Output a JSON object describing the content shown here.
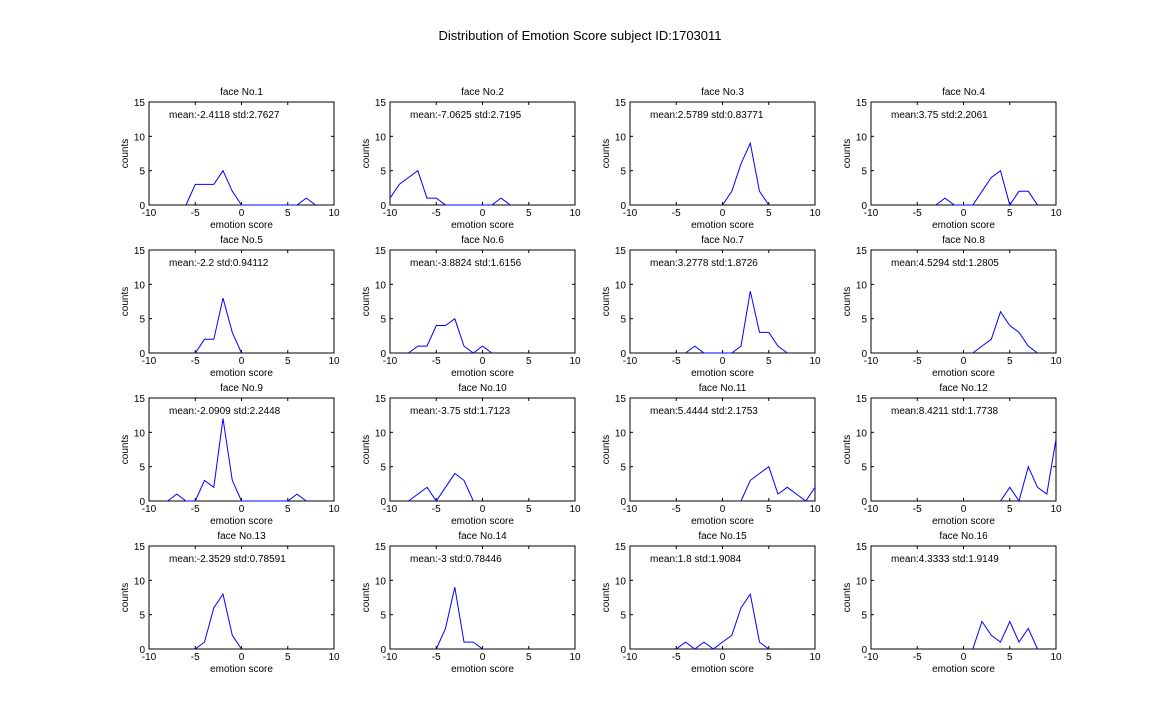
{
  "figure_title": "Distribution of Emotion Score  subject ID:1703011",
  "colors": {
    "series": "#0000ff",
    "axes": "#000000",
    "background": "#ffffff"
  },
  "chart_data": [
    {
      "type": "line",
      "title": "face No.1",
      "annotation": "mean:-2.4118 std:2.7627",
      "xlabel": "emotion score",
      "ylabel": "counts",
      "xlim": [
        -10,
        10
      ],
      "ylim": [
        0,
        15
      ],
      "xticks": [
        "-10",
        "-5",
        "0",
        "5",
        "10"
      ],
      "yticks": [
        "0",
        "5",
        "10",
        "15"
      ],
      "grid": false,
      "x": [
        -6,
        -5,
        -4,
        -3,
        -2,
        -1,
        0,
        1,
        2,
        3,
        4,
        5,
        6,
        7,
        8
      ],
      "y": [
        0,
        3,
        3,
        3,
        5,
        2,
        0,
        0,
        0,
        0,
        0,
        0,
        0,
        1,
        0
      ]
    },
    {
      "type": "line",
      "title": "face No.2",
      "annotation": "mean:-7.0625 std:2.7195",
      "xlabel": "emotion score",
      "ylabel": "counts",
      "xlim": [
        -10,
        10
      ],
      "ylim": [
        0,
        15
      ],
      "xticks": [
        "-10",
        "-5",
        "0",
        "5",
        "10"
      ],
      "yticks": [
        "0",
        "5",
        "10",
        "15"
      ],
      "grid": false,
      "x": [
        -10,
        -9,
        -8,
        -7,
        -6,
        -5,
        -4,
        -3,
        -2,
        -1,
        0,
        1,
        2,
        3
      ],
      "y": [
        1,
        3,
        4,
        5,
        1,
        1,
        0,
        0,
        0,
        0,
        0,
        0,
        1,
        0
      ]
    },
    {
      "type": "line",
      "title": "face No.3",
      "annotation": "mean:2.5789 std:0.83771",
      "xlabel": "emotion score",
      "ylabel": "counts",
      "xlim": [
        -10,
        10
      ],
      "ylim": [
        0,
        15
      ],
      "xticks": [
        "-10",
        "-5",
        "0",
        "5",
        "10"
      ],
      "yticks": [
        "0",
        "5",
        "10",
        "15"
      ],
      "grid": false,
      "x": [
        0,
        1,
        2,
        3,
        4,
        5
      ],
      "y": [
        0,
        2,
        6,
        9,
        2,
        0
      ]
    },
    {
      "type": "line",
      "title": "face No.4",
      "annotation": "mean:3.75 std:2.2061",
      "xlabel": "emotion score",
      "ylabel": "counts",
      "xlim": [
        -10,
        10
      ],
      "ylim": [
        0,
        15
      ],
      "xticks": [
        "-10",
        "-5",
        "0",
        "5",
        "10"
      ],
      "yticks": [
        "0",
        "5",
        "10",
        "15"
      ],
      "grid": false,
      "x": [
        -3,
        -2,
        -1,
        0,
        1,
        2,
        3,
        4,
        5,
        6,
        7,
        8
      ],
      "y": [
        0,
        1,
        0,
        0,
        0,
        2,
        4,
        5,
        0,
        2,
        2,
        0
      ]
    },
    {
      "type": "line",
      "title": "face No.5",
      "annotation": "mean:-2.2 std:0.94112",
      "xlabel": "emotion score",
      "ylabel": "counts",
      "xlim": [
        -10,
        10
      ],
      "ylim": [
        0,
        15
      ],
      "xticks": [
        "-10",
        "-5",
        "0",
        "5",
        "10"
      ],
      "yticks": [
        "0",
        "5",
        "10",
        "15"
      ],
      "grid": false,
      "x": [
        -5,
        -4,
        -3,
        -2,
        -1,
        0
      ],
      "y": [
        0,
        2,
        2,
        8,
        3,
        0
      ]
    },
    {
      "type": "line",
      "title": "face No.6",
      "annotation": "mean:-3.8824 std:1.6156",
      "xlabel": "emotion score",
      "ylabel": "counts",
      "xlim": [
        -10,
        10
      ],
      "ylim": [
        0,
        15
      ],
      "xticks": [
        "-10",
        "-5",
        "0",
        "5",
        "10"
      ],
      "yticks": [
        "0",
        "5",
        "10",
        "15"
      ],
      "grid": false,
      "x": [
        -8,
        -7,
        -6,
        -5,
        -4,
        -3,
        -2,
        -1,
        0,
        1
      ],
      "y": [
        0,
        1,
        1,
        4,
        4,
        5,
        1,
        0,
        1,
        0
      ]
    },
    {
      "type": "line",
      "title": "face No.7",
      "annotation": "mean:3.2778 std:1.8726",
      "xlabel": "emotion score",
      "ylabel": "counts",
      "xlim": [
        -10,
        10
      ],
      "ylim": [
        0,
        15
      ],
      "xticks": [
        "-10",
        "-5",
        "0",
        "5",
        "10"
      ],
      "yticks": [
        "0",
        "5",
        "10",
        "15"
      ],
      "grid": false,
      "x": [
        -4,
        -3,
        -2,
        -1,
        0,
        1,
        2,
        3,
        4,
        5,
        6,
        7
      ],
      "y": [
        0,
        1,
        0,
        0,
        0,
        0,
        1,
        9,
        3,
        3,
        1,
        0
      ]
    },
    {
      "type": "line",
      "title": "face No.8",
      "annotation": "mean:4.5294 std:1.2805",
      "xlabel": "emotion score",
      "ylabel": "counts",
      "xlim": [
        -10,
        10
      ],
      "ylim": [
        0,
        15
      ],
      "xticks": [
        "-10",
        "-5",
        "0",
        "5",
        "10"
      ],
      "yticks": [
        "0",
        "5",
        "10",
        "15"
      ],
      "grid": false,
      "x": [
        1,
        2,
        3,
        4,
        5,
        6,
        7,
        8
      ],
      "y": [
        0,
        1,
        2,
        6,
        4,
        3,
        1,
        0
      ]
    },
    {
      "type": "line",
      "title": "face No.9",
      "annotation": "mean:-2.0909 std:2.2448",
      "xlabel": "emotion score",
      "ylabel": "counts",
      "xlim": [
        -10,
        10
      ],
      "ylim": [
        0,
        15
      ],
      "xticks": [
        "-10",
        "-5",
        "0",
        "5",
        "10"
      ],
      "yticks": [
        "0",
        "5",
        "10",
        "15"
      ],
      "grid": false,
      "x": [
        -8,
        -7,
        -6,
        -5,
        -4,
        -3,
        -2,
        -1,
        0,
        1,
        2,
        3,
        4,
        5,
        6,
        7
      ],
      "y": [
        0,
        1,
        0,
        0,
        3,
        2,
        12,
        3,
        0,
        0,
        0,
        0,
        0,
        0,
        1,
        0
      ]
    },
    {
      "type": "line",
      "title": "face No.10",
      "annotation": "mean:-3.75 std:1.7123",
      "xlabel": "emotion score",
      "ylabel": "counts",
      "xlim": [
        -10,
        10
      ],
      "ylim": [
        0,
        15
      ],
      "xticks": [
        "-10",
        "-5",
        "0",
        "5",
        "10"
      ],
      "yticks": [
        "0",
        "5",
        "10",
        "15"
      ],
      "grid": false,
      "x": [
        -8,
        -7,
        -6,
        -5,
        -4,
        -3,
        -2,
        -1
      ],
      "y": [
        0,
        1,
        2,
        0,
        2,
        4,
        3,
        0
      ]
    },
    {
      "type": "line",
      "title": "face No.11",
      "annotation": "mean:5.4444 std:2.1753",
      "xlabel": "emotion score",
      "ylabel": "counts",
      "xlim": [
        -10,
        10
      ],
      "ylim": [
        0,
        15
      ],
      "xticks": [
        "-10",
        "-5",
        "0",
        "5",
        "10"
      ],
      "yticks": [
        "0",
        "5",
        "10",
        "15"
      ],
      "grid": false,
      "x": [
        2,
        3,
        4,
        5,
        6,
        7,
        8,
        9,
        10
      ],
      "y": [
        0,
        3,
        4,
        5,
        1,
        2,
        1,
        0,
        2
      ]
    },
    {
      "type": "line",
      "title": "face No.12",
      "annotation": "mean:8.4211 std:1.7738",
      "xlabel": "emotion score",
      "ylabel": "counts",
      "xlim": [
        -10,
        10
      ],
      "ylim": [
        0,
        15
      ],
      "xticks": [
        "-10",
        "-5",
        "0",
        "5",
        "10"
      ],
      "yticks": [
        "0",
        "5",
        "10",
        "15"
      ],
      "grid": false,
      "x": [
        4,
        5,
        6,
        7,
        8,
        9,
        10
      ],
      "y": [
        0,
        2,
        0,
        5,
        2,
        1,
        9
      ]
    },
    {
      "type": "line",
      "title": "face No.13",
      "annotation": "mean:-2.3529 std:0.78591",
      "xlabel": "emotion score",
      "ylabel": "counts",
      "xlim": [
        -10,
        10
      ],
      "ylim": [
        0,
        15
      ],
      "xticks": [
        "-10",
        "-5",
        "0",
        "5",
        "10"
      ],
      "yticks": [
        "0",
        "5",
        "10",
        "15"
      ],
      "grid": false,
      "x": [
        -5,
        -4,
        -3,
        -2,
        -1,
        0
      ],
      "y": [
        0,
        1,
        6,
        8,
        2,
        0
      ]
    },
    {
      "type": "line",
      "title": "face No.14",
      "annotation": "mean:-3 std:0.78446",
      "xlabel": "emotion score",
      "ylabel": "counts",
      "xlim": [
        -10,
        10
      ],
      "ylim": [
        0,
        15
      ],
      "xticks": [
        "-10",
        "-5",
        "0",
        "5",
        "10"
      ],
      "yticks": [
        "0",
        "5",
        "10",
        "15"
      ],
      "grid": false,
      "x": [
        -5,
        -4,
        -3,
        -2,
        -1,
        0
      ],
      "y": [
        0,
        3,
        9,
        1,
        1,
        0
      ]
    },
    {
      "type": "line",
      "title": "face No.15",
      "annotation": "mean:1.8 std:1.9084",
      "xlabel": "emotion score",
      "ylabel": "counts",
      "xlim": [
        -10,
        10
      ],
      "ylim": [
        0,
        15
      ],
      "xticks": [
        "-10",
        "-5",
        "0",
        "5",
        "10"
      ],
      "yticks": [
        "0",
        "5",
        "10",
        "15"
      ],
      "grid": false,
      "x": [
        -5,
        -4,
        -3,
        -2,
        -1,
        0,
        1,
        2,
        3,
        4,
        5
      ],
      "y": [
        0,
        1,
        0,
        1,
        0,
        1,
        2,
        6,
        8,
        1,
        0
      ]
    },
    {
      "type": "line",
      "title": "face No.16",
      "annotation": "mean:4.3333 std:1.9149",
      "xlabel": "emotion score",
      "ylabel": "counts",
      "xlim": [
        -10,
        10
      ],
      "ylim": [
        0,
        15
      ],
      "xticks": [
        "-10",
        "-5",
        "0",
        "5",
        "10"
      ],
      "yticks": [
        "0",
        "5",
        "10",
        "15"
      ],
      "grid": false,
      "x": [
        1,
        2,
        3,
        4,
        5,
        6,
        7,
        8
      ],
      "y": [
        0,
        4,
        2,
        1,
        4,
        1,
        3,
        0
      ]
    }
  ]
}
